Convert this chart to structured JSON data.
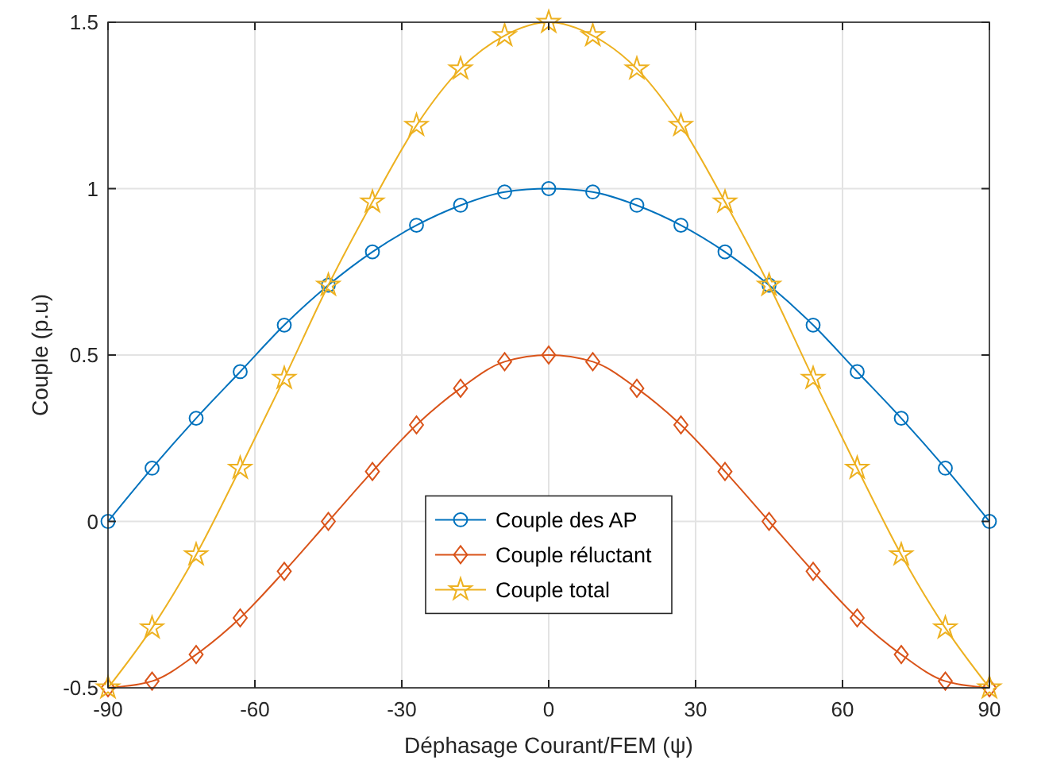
{
  "chart_data": {
    "type": "line",
    "xlabel": "Déphasage Courant/FEM (ψ)",
    "ylabel": "Couple (p.u)",
    "x": [
      -90,
      -81,
      -72,
      -63,
      -54,
      -45,
      -36,
      -27,
      -18,
      -9,
      0,
      9,
      18,
      27,
      36,
      45,
      54,
      63,
      72,
      81,
      90
    ],
    "series": [
      {
        "name": "Couple des AP",
        "color": "#0072bd",
        "marker": "circle",
        "values": [
          0,
          0.16,
          0.31,
          0.45,
          0.59,
          0.71,
          0.81,
          0.89,
          0.95,
          0.99,
          1,
          0.99,
          0.95,
          0.89,
          0.81,
          0.71,
          0.59,
          0.45,
          0.31,
          0.16,
          0
        ]
      },
      {
        "name": "Couple réluctant",
        "color": "#d95319",
        "marker": "diamond",
        "values": [
          -0.5,
          -0.48,
          -0.4,
          -0.29,
          -0.15,
          0,
          0.15,
          0.29,
          0.4,
          0.48,
          0.5,
          0.48,
          0.4,
          0.29,
          0.15,
          0,
          -0.15,
          -0.29,
          -0.4,
          -0.48,
          -0.5
        ]
      },
      {
        "name": "Couple total",
        "color": "#edb120",
        "marker": "star",
        "values": [
          -0.5,
          -0.32,
          -0.1,
          0.16,
          0.43,
          0.71,
          0.96,
          1.19,
          1.36,
          1.46,
          1.5,
          1.46,
          1.36,
          1.19,
          0.96,
          0.71,
          0.43,
          0.16,
          -0.1,
          -0.32,
          -0.5
        ]
      }
    ],
    "xlim": [
      -90,
      90
    ],
    "xticks": [
      -90,
      -60,
      -30,
      0,
      30,
      60,
      90
    ],
    "ylim": [
      -0.5,
      1.5
    ],
    "yticks": [
      -0.5,
      0,
      0.5,
      1,
      1.5
    ],
    "grid": true,
    "legend": "bottom",
    "line_style": "solid"
  }
}
